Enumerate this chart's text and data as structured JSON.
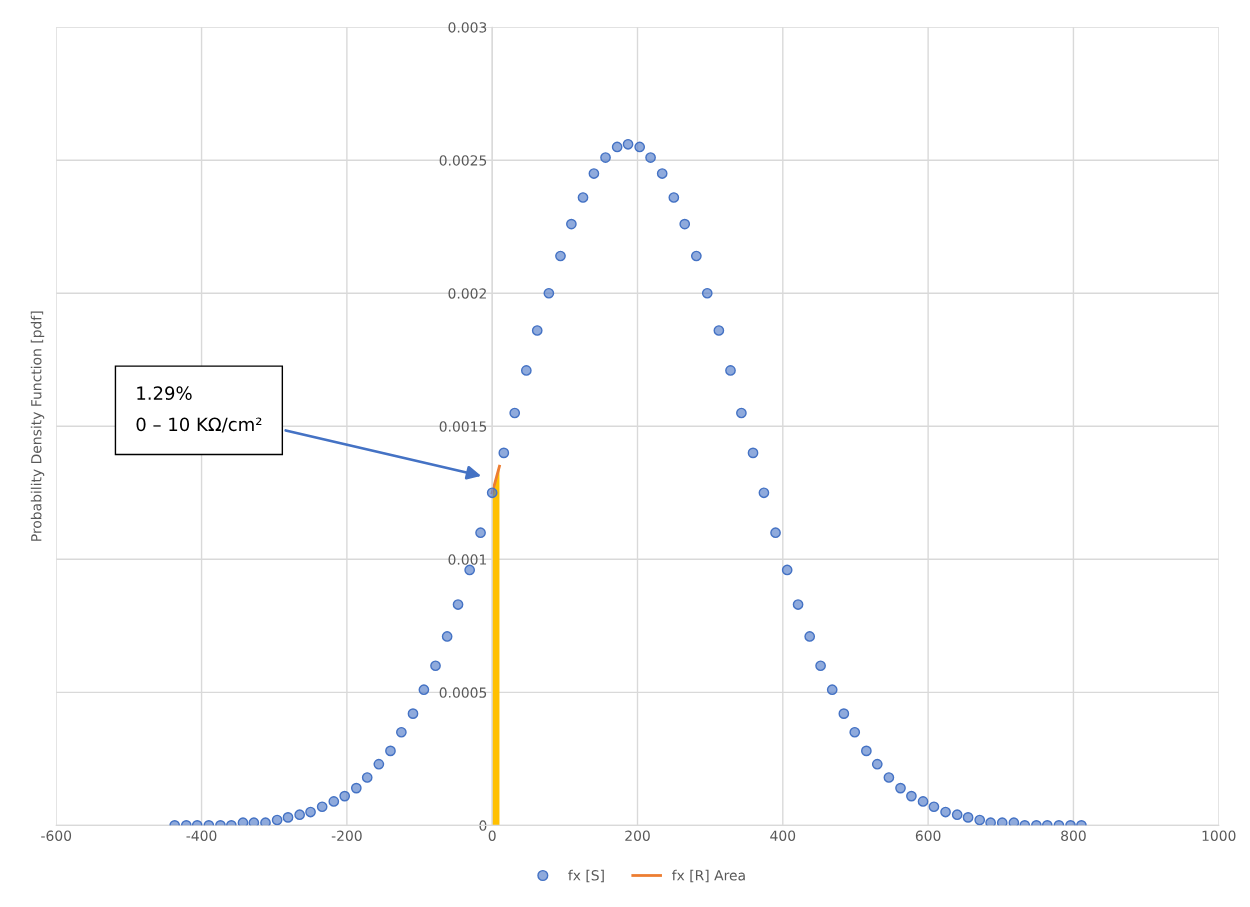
{
  "chart_data": {
    "type": "scatter",
    "ylabel": "Probability Density Function [pdf]",
    "xlim": [
      -600,
      1000
    ],
    "xticks": [
      -600,
      -400,
      -200,
      0,
      200,
      400,
      600,
      800,
      1000
    ],
    "ylim": [
      0,
      0.003
    ],
    "yticks": [
      0,
      0.0005,
      0.001,
      0.0015,
      0.002,
      0.0025,
      0.003
    ],
    "grid": true,
    "legend": "bottom",
    "series": [
      {
        "name": "fx [S]",
        "marker": "circle",
        "color": "#4472c4",
        "x": [
          -437,
          -421,
          -406,
          -390,
          -374,
          -359,
          -343,
          -328,
          -312,
          -296,
          -281,
          -265,
          -250,
          -234,
          -218,
          -203,
          -187,
          -172,
          -156,
          -140,
          -125,
          -109,
          -94,
          -78,
          -62,
          -47,
          -31,
          -16,
          0,
          16,
          31,
          47,
          62,
          78,
          94,
          109,
          125,
          140,
          156,
          172,
          187,
          203,
          218,
          234,
          250,
          265,
          281,
          296,
          312,
          328,
          343,
          359,
          374,
          390,
          406,
          421,
          437,
          452,
          468,
          484,
          499,
          515,
          530,
          546,
          562,
          577,
          593,
          608,
          624,
          640,
          655,
          671,
          686,
          702,
          718,
          733,
          749,
          764,
          780,
          796,
          811
        ],
        "values": [
          0,
          0,
          0,
          0,
          0,
          0,
          1e-05,
          1e-05,
          1e-05,
          2e-05,
          3e-05,
          4e-05,
          5e-05,
          7e-05,
          9e-05,
          0.00011,
          0.00014,
          0.00018,
          0.00023,
          0.00028,
          0.00035,
          0.00042,
          0.00051,
          0.0006,
          0.00071,
          0.00083,
          0.00096,
          0.0011,
          0.00125,
          0.0014,
          0.00155,
          0.00171,
          0.00186,
          0.002,
          0.00214,
          0.00226,
          0.00236,
          0.00245,
          0.00251,
          0.00255,
          0.00256,
          0.00255,
          0.00251,
          0.00245,
          0.00236,
          0.00226,
          0.00214,
          0.002,
          0.00186,
          0.00171,
          0.00155,
          0.0014,
          0.00125,
          0.0011,
          0.00096,
          0.00083,
          0.00071,
          0.0006,
          0.00051,
          0.00042,
          0.00035,
          0.00028,
          0.00023,
          0.00018,
          0.00014,
          0.00011,
          9e-05,
          7e-05,
          5e-05,
          4e-05,
          3e-05,
          2e-05,
          1e-05,
          1e-05,
          1e-05,
          0,
          0,
          0,
          0,
          0,
          0
        ]
      },
      {
        "type": "area",
        "color": "#ffc000",
        "x": [
          0,
          10
        ],
        "values": [
          0.00125,
          0.00135
        ]
      },
      {
        "name": "fx [R] Area",
        "type": "line",
        "color": "#ed7d31",
        "x": [
          0,
          10
        ],
        "values": [
          0.00125,
          0.00135
        ]
      }
    ],
    "annotations": [
      "1.29%\n0 – 10 KΩ/cm²"
    ]
  }
}
